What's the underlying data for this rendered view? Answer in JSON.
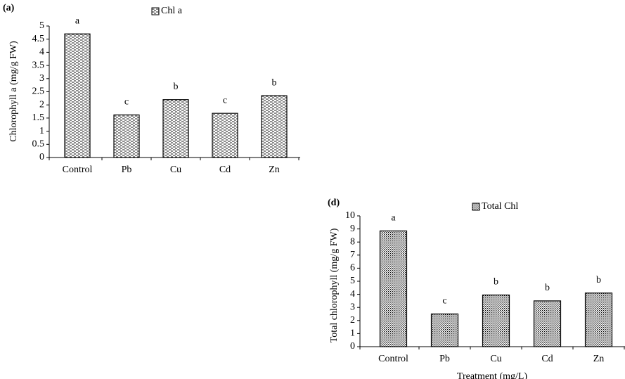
{
  "chart_data": [
    {
      "type": "bar",
      "panel": "(a)",
      "legend": "Chl a",
      "y_label": "Chlorophyll a (mg/g FW)",
      "categories": [
        "Control",
        "Pb",
        "Cu",
        "Cd",
        "Zn"
      ],
      "values": [
        4.7,
        1.62,
        2.2,
        1.68,
        2.35
      ],
      "annotations": [
        "a",
        "c",
        "b",
        "c",
        "b"
      ],
      "pattern": "dash",
      "color": "#000000",
      "ylim": [
        0,
        5
      ],
      "yticks": [
        0,
        0.5,
        1,
        1.5,
        2,
        2.5,
        3,
        3.5,
        4,
        4.5,
        5
      ]
    },
    {
      "type": "bar",
      "panel": "(d)",
      "legend": "Total Chl",
      "y_label": "Total chlorophyll (mg/g FW)",
      "x_label": "Treatment (mg/L)",
      "categories": [
        "Control",
        "Pb",
        "Cu",
        "Cd",
        "Zn"
      ],
      "values": [
        8.85,
        2.5,
        3.95,
        3.5,
        4.1
      ],
      "annotations": [
        "a",
        "c",
        "b",
        "b",
        "b"
      ],
      "pattern": "dot",
      "color": "#000000",
      "ylim": [
        0,
        10
      ],
      "yticks": [
        0,
        1,
        2,
        3,
        4,
        5,
        6,
        7,
        8,
        9,
        10
      ]
    }
  ]
}
